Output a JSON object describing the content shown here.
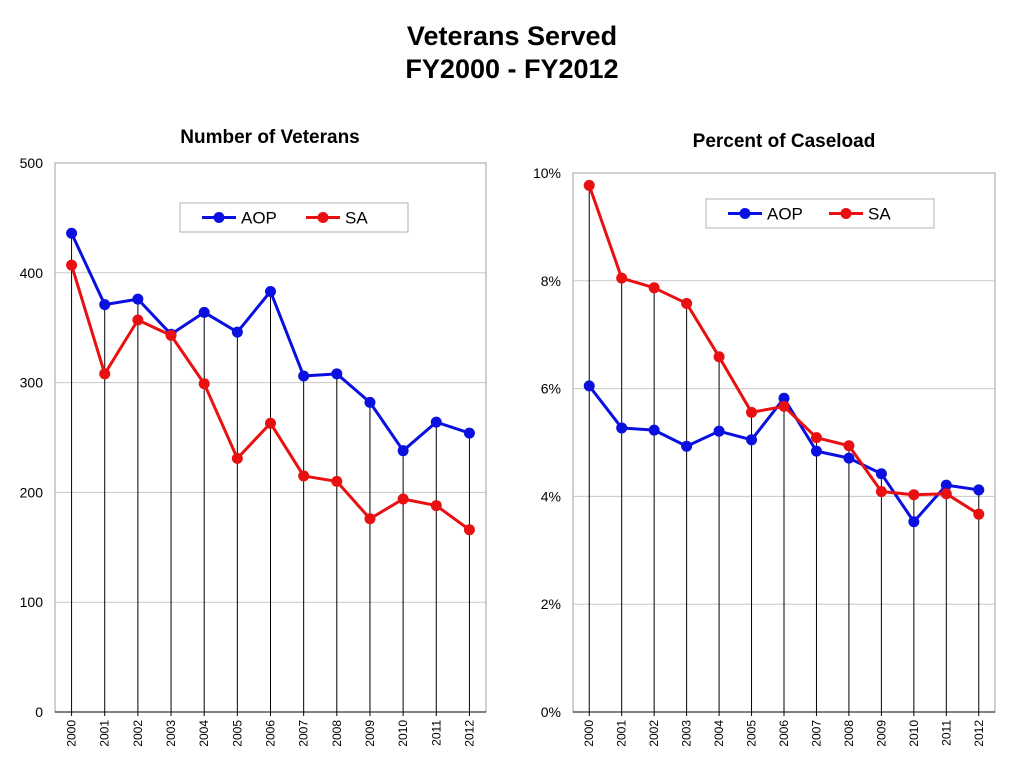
{
  "page": {
    "title_line1": "Veterans Served",
    "title_line2": "FY2000 - FY2012"
  },
  "colors": {
    "AOP": "#0a10e0",
    "SA": "#e81010",
    "grid": "#c8c8c8",
    "drop_line": "#000000"
  },
  "chart_data": [
    {
      "type": "line",
      "title": "Number of Veterans",
      "xlabel": "",
      "ylabel": "",
      "categories": [
        "2000",
        "2001",
        "2002",
        "2003",
        "2004",
        "2005",
        "2006",
        "2007",
        "2008",
        "2009",
        "2010",
        "2011",
        "2012"
      ],
      "ylim": [
        0,
        500
      ],
      "yticks": [
        0,
        100,
        200,
        300,
        400,
        500
      ],
      "ytick_labels": [
        "0",
        "100",
        "200",
        "300",
        "400",
        "500"
      ],
      "grid": true,
      "drop_lines": true,
      "legend_position": "top-center",
      "series": [
        {
          "name": "AOP",
          "values": [
            436,
            371,
            376,
            344,
            364,
            346,
            383,
            306,
            308,
            282,
            238,
            264,
            254
          ]
        },
        {
          "name": "SA",
          "values": [
            407,
            308,
            357,
            343,
            299,
            231,
            263,
            215,
            210,
            176,
            194,
            188,
            166
          ]
        }
      ]
    },
    {
      "type": "line",
      "title": "Percent of Caseload",
      "xlabel": "",
      "ylabel": "",
      "categories": [
        "2000",
        "2001",
        "2002",
        "2003",
        "2004",
        "2005",
        "2006",
        "2007",
        "2008",
        "2009",
        "2010",
        "2011",
        "2012"
      ],
      "ylim": [
        0,
        10
      ],
      "yticks": [
        0,
        2,
        4,
        6,
        8,
        10
      ],
      "ytick_labels": [
        "0%",
        "2%",
        "4%",
        "6%",
        "8%",
        "10%"
      ],
      "grid": true,
      "drop_lines": true,
      "legend_position": "top-center",
      "series": [
        {
          "name": "AOP",
          "values": [
            6.05,
            5.27,
            5.23,
            4.93,
            5.21,
            5.05,
            5.82,
            4.84,
            4.71,
            4.42,
            3.53,
            4.21,
            4.12
          ]
        },
        {
          "name": "SA",
          "values": [
            9.77,
            8.05,
            7.87,
            7.58,
            6.59,
            5.56,
            5.67,
            5.09,
            4.94,
            4.09,
            4.03,
            4.05,
            3.67
          ]
        }
      ]
    }
  ]
}
